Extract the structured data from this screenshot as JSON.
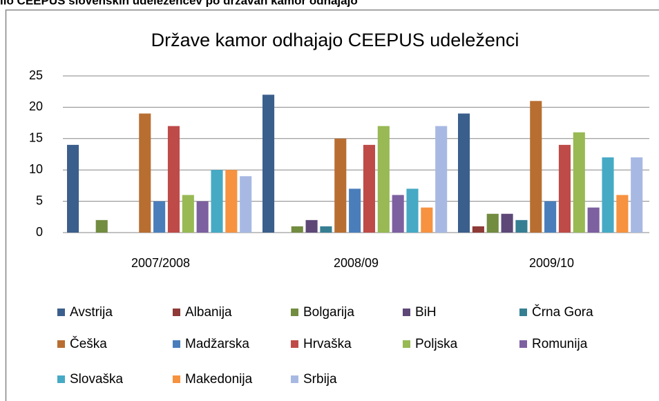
{
  "caption": "lio CEEPUS slovenskih udeležencev po državah kamor odhajajo",
  "chart_data": {
    "type": "bar",
    "title": "Države kamor odhajajo CEEPUS udeleženci",
    "categories": [
      "2007/2008",
      "2008/09",
      "2009/10"
    ],
    "series": [
      {
        "name": "Avstrija",
        "color": "#3b5f8c",
        "values": [
          14,
          22,
          19
        ]
      },
      {
        "name": "Albanija",
        "color": "#8e3a37",
        "values": [
          0,
          0,
          1
        ]
      },
      {
        "name": "Bolgarija",
        "color": "#728c40",
        "values": [
          2,
          1,
          3
        ]
      },
      {
        "name": "BiH",
        "color": "#5d4878",
        "values": [
          0,
          2,
          3
        ]
      },
      {
        "name": "Črna Gora",
        "color": "#367f93",
        "values": [
          0,
          1,
          2
        ]
      },
      {
        "name": "Češka",
        "color": "#b86e31",
        "values": [
          19,
          15,
          21
        ]
      },
      {
        "name": "Madžarska",
        "color": "#4a7ebb",
        "values": [
          5,
          7,
          5
        ]
      },
      {
        "name": "Hrvaška",
        "color": "#be4b48",
        "values": [
          17,
          14,
          14
        ]
      },
      {
        "name": "Poljska",
        "color": "#98b954",
        "values": [
          6,
          17,
          16
        ]
      },
      {
        "name": "Romunija",
        "color": "#7d60a0",
        "values": [
          5,
          6,
          4
        ]
      },
      {
        "name": "Slovaška",
        "color": "#46aac5",
        "values": [
          10,
          7,
          12
        ]
      },
      {
        "name": "Makedonija",
        "color": "#f69240",
        "values": [
          10,
          4,
          6
        ]
      },
      {
        "name": "Srbija",
        "color": "#a7b9e3",
        "values": [
          9,
          17,
          12
        ]
      }
    ],
    "ylim": [
      0,
      25
    ],
    "yticks": [
      0,
      5,
      10,
      15,
      20,
      25
    ],
    "grid": true,
    "legend": "bottom"
  }
}
